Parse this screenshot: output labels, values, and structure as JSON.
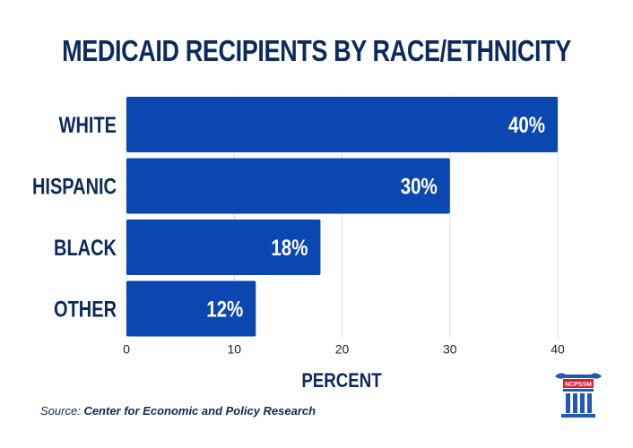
{
  "chart_data": {
    "type": "bar",
    "orientation": "horizontal",
    "title": "MEDICAID RECIPIENTS BY RACE/ETHNICITY",
    "categories": [
      "WHITE",
      "HISPANIC",
      "BLACK",
      "OTHER"
    ],
    "values": [
      40,
      30,
      18,
      12
    ],
    "data_labels": [
      "40%",
      "30%",
      "18%",
      "12%"
    ],
    "xlabel": "PERCENT",
    "ylabel": "",
    "xlim": [
      0,
      40
    ],
    "x_ticks": [
      "0",
      "10",
      "20",
      "30",
      "40"
    ],
    "grid": true,
    "bar_color": "#0a47b0"
  },
  "source": {
    "label": "Source:",
    "text": "Center for Economic and Policy Research"
  },
  "logo": {
    "text": "NCPSSM",
    "icon": "column-pillar-icon"
  },
  "colors": {
    "navy": "#0c2a5b",
    "bar": "#0a47b0",
    "grid": "#dcdcdc",
    "logo_red": "#d6202f",
    "logo_blue": "#1f58b5"
  }
}
